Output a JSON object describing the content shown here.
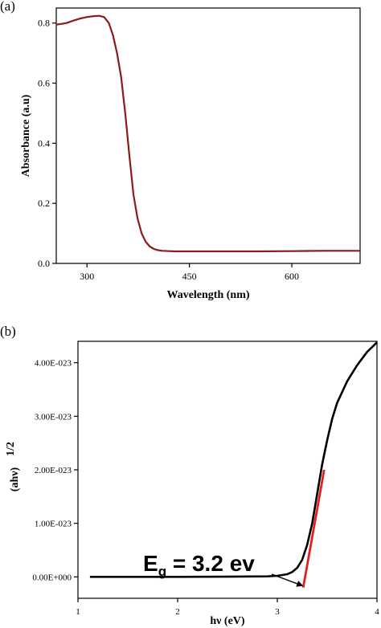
{
  "panels": {
    "a": {
      "label": "(a)"
    },
    "b": {
      "label": "(b)"
    }
  },
  "chart_data": [
    {
      "type": "line",
      "panel": "(a)",
      "xlabel": "Wavelength (nm)",
      "ylabel": "Absorbance (a.u)",
      "xlim": [
        255,
        700
      ],
      "ylim": [
        0,
        0.85
      ],
      "xticks": [
        300,
        450,
        600
      ],
      "yticks": [
        0.0,
        0.2,
        0.4,
        0.6,
        0.8
      ],
      "xtick_labels": [
        "300",
        "450",
        "600"
      ],
      "ytick_labels": [
        "0.0",
        "0.2",
        "0.4",
        "0.6",
        "0.8"
      ],
      "series": [
        {
          "color": "#8b1a1a",
          "x": [
            255,
            262,
            270,
            280,
            290,
            300,
            310,
            318,
            325,
            332,
            338,
            344,
            350,
            356,
            362,
            368,
            374,
            380,
            386,
            392,
            398,
            404,
            410,
            420,
            430,
            450,
            500,
            550,
            600,
            650,
            700
          ],
          "y": [
            0.795,
            0.797,
            0.8,
            0.808,
            0.815,
            0.82,
            0.823,
            0.824,
            0.82,
            0.8,
            0.76,
            0.7,
            0.62,
            0.5,
            0.36,
            0.23,
            0.15,
            0.1,
            0.072,
            0.056,
            0.048,
            0.044,
            0.042,
            0.041,
            0.04,
            0.04,
            0.04,
            0.04,
            0.041,
            0.042,
            0.042
          ]
        }
      ]
    },
    {
      "type": "line",
      "panel": "(b)",
      "xlabel": "hν (eV)",
      "ylabel": "(ahν)",
      "ylabel_superscript": "1/2",
      "xlim": [
        1,
        4
      ],
      "ylim": [
        -4e-24,
        4.4e-23
      ],
      "xticks": [
        1,
        2,
        3,
        4
      ],
      "yticks": [
        0,
        1e-23,
        2e-23,
        3e-23,
        4e-23
      ],
      "xtick_labels": [
        "1",
        "2",
        "3",
        "4"
      ],
      "ytick_labels": [
        "0.00E+000",
        "1.00E-023",
        "2.00E-023",
        "3.00E-023",
        "4.00E-023"
      ],
      "series": [
        {
          "color": "#000000",
          "x": [
            1.12,
            1.5,
            2.0,
            2.5,
            2.9,
            3.0,
            3.1,
            3.15,
            3.2,
            3.25,
            3.3,
            3.35,
            3.4,
            3.45,
            3.5,
            3.55,
            3.6,
            3.7,
            3.8,
            3.9,
            4.0
          ],
          "y": [
            0,
            0,
            1e-26,
            3e-26,
            1e-25,
            2e-25,
            5e-25,
            9e-25,
            1.7e-24,
            3.2e-24,
            6e-24,
            1e-23,
            1.55e-23,
            2.1e-23,
            2.55e-23,
            2.95e-23,
            3.25e-23,
            3.65e-23,
            3.95e-23,
            4.2e-23,
            4.38e-23
          ]
        },
        {
          "color": "#e02020",
          "x": [
            3.26,
            3.47
          ],
          "y": [
            -2e-24,
            2e-23
          ]
        }
      ],
      "annotation": {
        "text_main": "E",
        "text_sub": "g",
        "text_rest": " = 3.2 ev",
        "arrow_to": [
          3.26,
          -1.7e-24
        ]
      }
    }
  ]
}
